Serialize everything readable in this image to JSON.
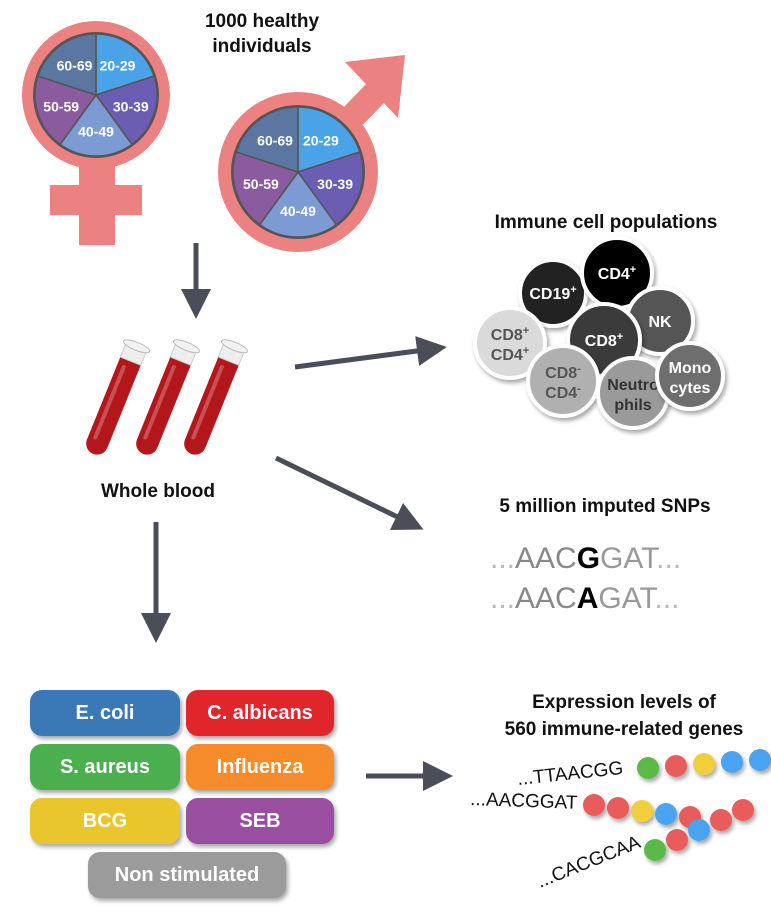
{
  "cohort": {
    "title_line1": "1000 healthy",
    "title_line2": "individuals",
    "age_groups": [
      "20-29",
      "30-39",
      "40-49",
      "50-59",
      "60-69"
    ],
    "age_colors": [
      "#4aa3e6",
      "#6a5db3",
      "#7b9bd2",
      "#8a5b9e",
      "#5b76a0"
    ],
    "symbol_color": "#ec8181"
  },
  "blood": {
    "label": "Whole blood",
    "tube_color": "#b3171b"
  },
  "cells": {
    "title": "Immune cell populations",
    "items": [
      {
        "l1": "CD19",
        "sup1": "+",
        "fill": "#222222",
        "text": "#fff"
      },
      {
        "l1": "CD4",
        "sup1": "+",
        "fill": "#000000",
        "text": "#fff"
      },
      {
        "l1": "NK",
        "fill": "#555555",
        "text": "#fff"
      },
      {
        "l1": "CD8",
        "sup1": "+",
        "l2": "CD4",
        "sup2": "+",
        "fill": "#dadada",
        "text": "#555"
      },
      {
        "l1": "CD8",
        "sup1": "+",
        "fill": "#3a3a3a",
        "text": "#fff"
      },
      {
        "l1": "CD8",
        "sup1": "-",
        "l2": "CD4",
        "sup2": "-",
        "fill": "#b0b0b0",
        "text": "#555"
      },
      {
        "l1": "Neutro",
        "l2": "phils",
        "fill": "#9a9a9a",
        "text": "#333"
      },
      {
        "l1": "Mono",
        "l2": "cytes",
        "fill": "#6e6e6e",
        "text": "#fff"
      }
    ]
  },
  "snps": {
    "title": "5 million imputed SNPs",
    "seq1": {
      "pre": "AAC",
      "alt": "G",
      "post": "GAT"
    },
    "seq2": {
      "pre": "AAC",
      "alt": "A",
      "post": "GAT"
    },
    "dots": "..."
  },
  "stimuli": [
    {
      "label": "E. coli",
      "color": "#3a79b6"
    },
    {
      "label": "C. albicans",
      "color": "#e1262b"
    },
    {
      "label": "S. aureus",
      "color": "#4bae4f"
    },
    {
      "label": "Influenza",
      "color": "#f68b2b"
    },
    {
      "label": "BCG",
      "color": "#e9c62b"
    },
    {
      "label": "SEB",
      "color": "#9a4ea0"
    },
    {
      "label": "Non stimulated",
      "color": "#9b9b9b"
    }
  ],
  "expression": {
    "title_line1": "Expression levels of",
    "title_line2": "560 immune-related genes",
    "strands": [
      "...TTAACGG",
      "...AACGGAT",
      "...CACGCAA"
    ],
    "bead_colors": {
      "green": "#5cb84a",
      "red": "#e85c5c",
      "yellow": "#f2cd3c",
      "blue": "#4aa3f0"
    }
  },
  "arrow_color": "#4a4e58"
}
